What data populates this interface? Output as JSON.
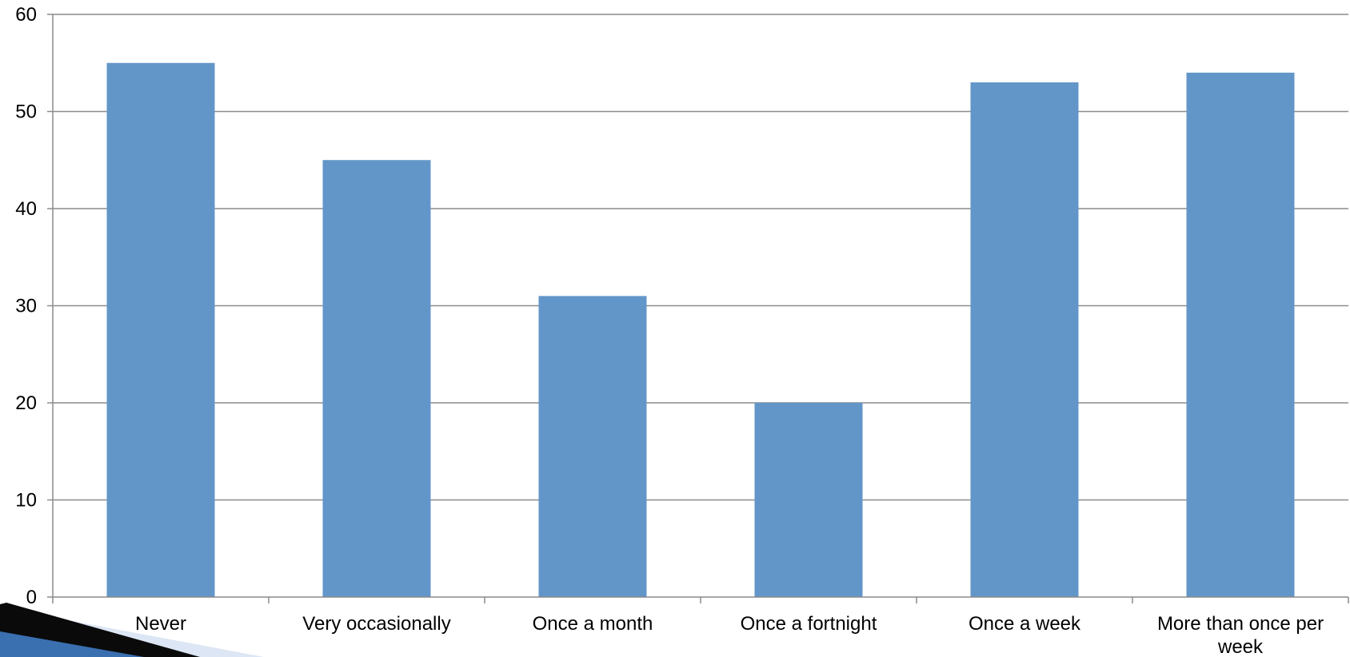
{
  "chart_data": {
    "type": "bar",
    "categories": [
      [
        "Never"
      ],
      [
        "Very occasionally"
      ],
      [
        "Once a month"
      ],
      [
        "Once a fortnight"
      ],
      [
        "Once a week"
      ],
      [
        "More than once per",
        "week"
      ]
    ],
    "values": [
      55,
      45,
      31,
      20,
      53,
      54
    ],
    "title": "",
    "xlabel": "",
    "ylabel": "",
    "ylim": [
      0,
      60
    ],
    "yticks": [
      "0",
      "10",
      "20",
      "30",
      "40",
      "50",
      "60"
    ],
    "grid": true,
    "legend": "none",
    "colors": {
      "bar": "#6296c9",
      "grid": "#8c8c8c",
      "axis": "#8c8c8c",
      "text": "#000000",
      "decor_dark": "#0a0a0a",
      "decor_blue": "#3a6fb0",
      "decor_light": "#dce6f4"
    }
  }
}
